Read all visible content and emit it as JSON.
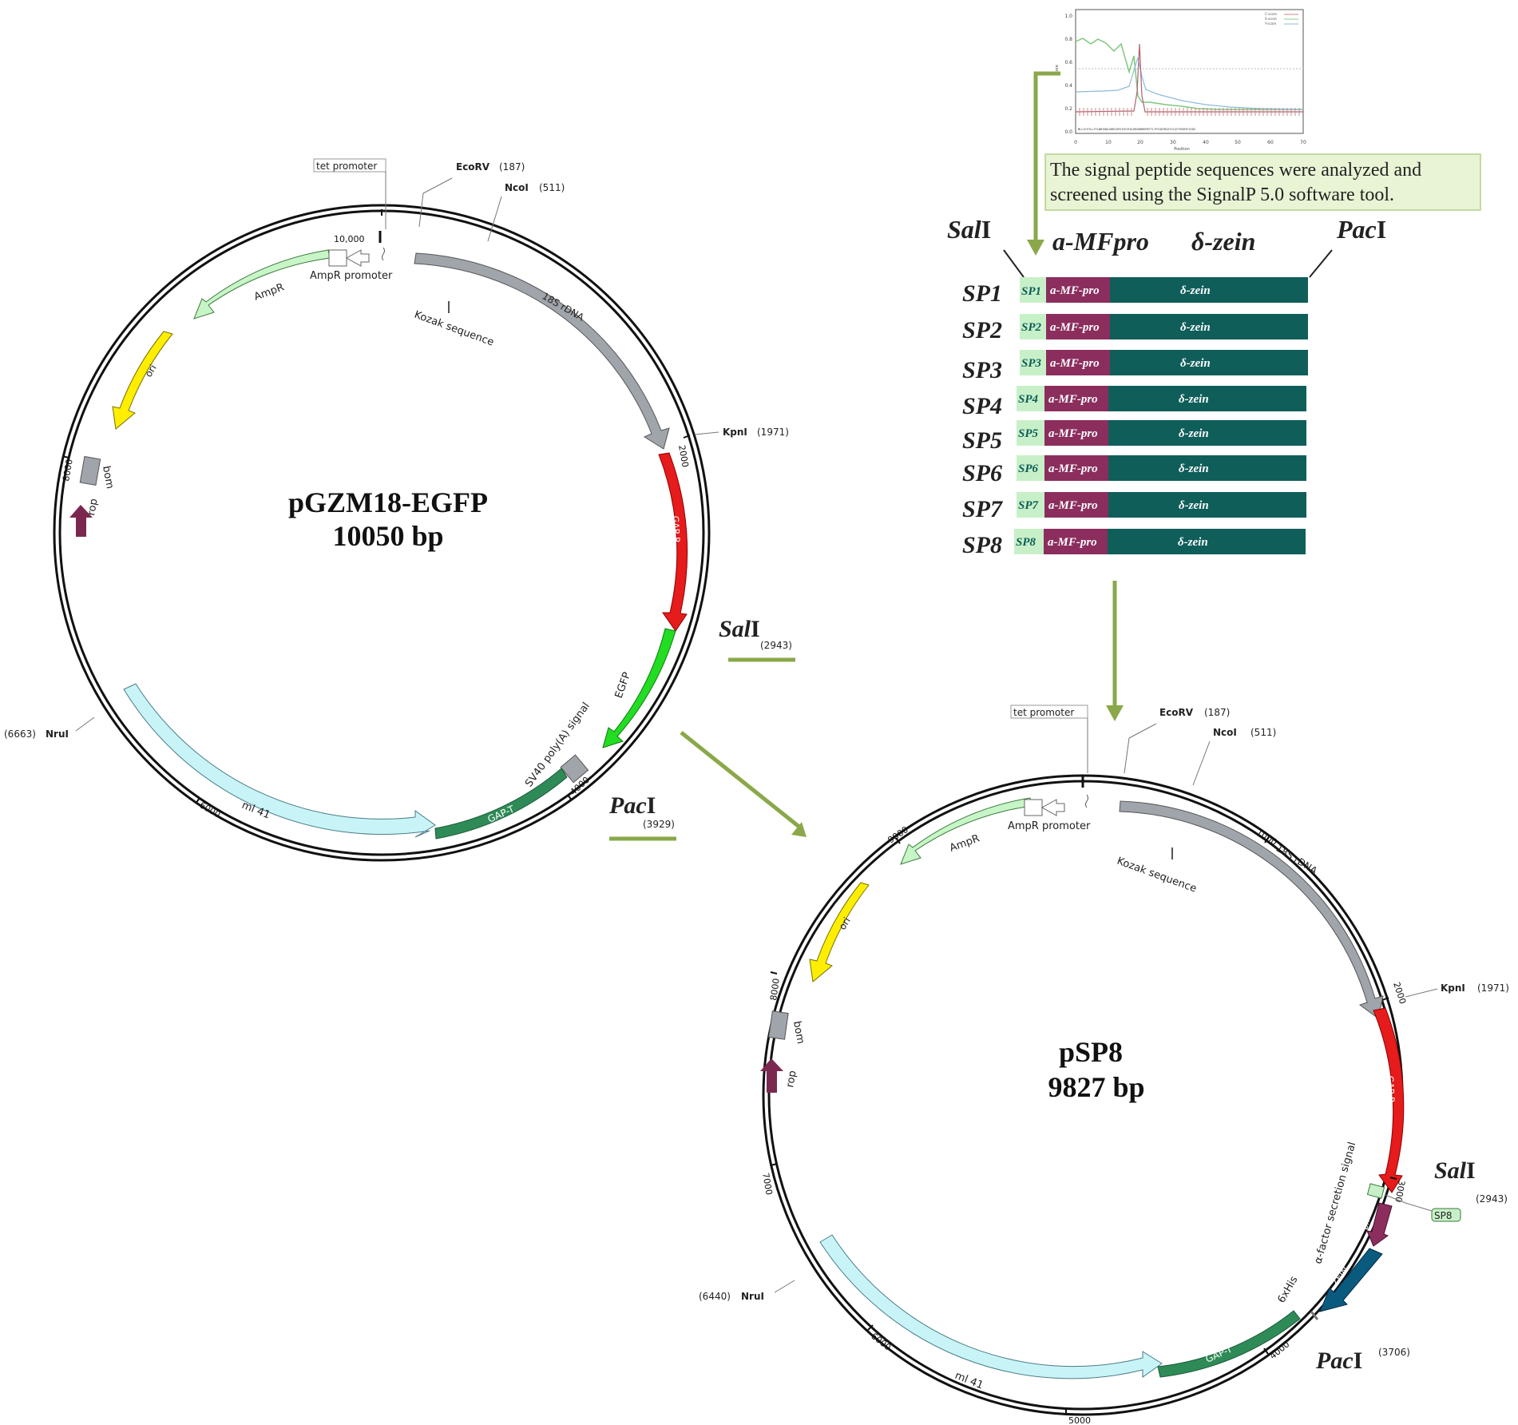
{
  "note_text": [
    "The signal peptide sequences were analyzed and",
    "screened using the SignalP 5.0 software tool."
  ],
  "signalp_chart": {
    "ytick_labels": [
      "1.0",
      "0.8",
      "0.6",
      "0.4",
      "0.2",
      "0.0"
    ],
    "xtick_labels": [
      "0",
      "10",
      "20",
      "30",
      "40",
      "50",
      "60",
      "70"
    ],
    "xlabel": "Position",
    "ylabel": "Score",
    "legend": [
      "C-score",
      "S-score",
      "Y-score"
    ],
    "sequence": "MLLSYSTLLFYLNRYNQLGRRCDFEIVGSFGLRRHORRKPRTTLTPIGOTRQYIYLGFYRSRYFSIDS"
  },
  "construct_header": {
    "sal": "Sal",
    "sal_suffix": "I",
    "amf": "a-MFpro",
    "zein": "δ-zein",
    "pac": "Pac",
    "pac_suffix": "I"
  },
  "constructs": [
    {
      "name": "SP1",
      "sp": "SP1",
      "mf": "a-MF-pro",
      "zein": "δ-zein"
    },
    {
      "name": "SP2",
      "sp": "SP2",
      "mf": "a-MF-pro",
      "zein": "δ-zein"
    },
    {
      "name": "SP3",
      "sp": "SP3",
      "mf": "a-MF-pro",
      "zein": "δ-zein"
    },
    {
      "name": "SP4",
      "sp": "SP4",
      "mf": "a-MF-pro",
      "zein": "δ-zein"
    },
    {
      "name": "SP5",
      "sp": "SP5",
      "mf": "a-MF-pro",
      "zein": "δ-zein"
    },
    {
      "name": "SP6",
      "sp": "SP6",
      "mf": "a-MF-pro",
      "zein": "δ-zein"
    },
    {
      "name": "SP7",
      "sp": "SP7",
      "mf": "a-MF-pro",
      "zein": "δ-zein"
    },
    {
      "name": "SP8",
      "sp": "SP8",
      "mf": "a-MF-pro",
      "zein": "δ-zein"
    }
  ],
  "plasmid1": {
    "name": "pGZM18-EGFP",
    "size": "10050 bp",
    "tet_promoter": "tet promoter",
    "sites": {
      "ecorv": "EcoRV",
      "ecorv_pos": "(187)",
      "ncoi": "NcoI",
      "ncoi_pos": "(511)",
      "kpni": "KpnI",
      "kpni_pos": "(1971)",
      "nrui": "NruI",
      "nrui_pos": "(6663)",
      "sal": "Sal",
      "sal_suffix": "I",
      "sal_pos": "(2943)",
      "pac": "Pac",
      "pac_suffix": "I",
      "pac_pos": "(3929)"
    },
    "ticks": {
      "t10000": "10,000",
      "t2000": "2000",
      "t4000": "4000",
      "t6000": "6000",
      "t8000": "8000"
    },
    "features": {
      "amp_promoter": "AmpR promoter",
      "ampr": "AmpR",
      "rdna": "18S rDNA",
      "kozak": "Kozak sequence",
      "ori": "ori",
      "bom": "bom",
      "rop": "rop",
      "gap_p": "GAP-P",
      "egfp": "EGFP",
      "sv40": "SV40 poly(A) signal",
      "gap_t": "GAP-T",
      "ml41": "ml 41"
    }
  },
  "plasmid2": {
    "name": "pSP8",
    "size": "9827 bp",
    "tet_promoter": "tet promoter",
    "sites": {
      "ecorv": "EcoRV",
      "ecorv_pos": "(187)",
      "ncoi": "NcoI",
      "ncoi_pos": "(511)",
      "kpni": "KpnI",
      "kpni_pos": "(1971)",
      "nrui": "NruI",
      "nrui_pos": "(6440)",
      "sal": "Sal",
      "sal_suffix": "I",
      "sal_pos": "(2943)",
      "pac": "Pac",
      "pac_suffix": "I",
      "pac_pos": "(3706)"
    },
    "ticks": {
      "t1000": "1000",
      "t2000": "2000",
      "t3000": "3000",
      "t4000": "4000",
      "t5000": "5000",
      "t6000": "6000",
      "t7000": "7000",
      "t8000": "8000",
      "t9000": "9000"
    },
    "features": {
      "amp_promoter": "AmpR promoter",
      "ampr": "AmpR",
      "rdna": "18S rDNA",
      "kozak": "Kozak sequence",
      "ori": "ori",
      "bom": "bom",
      "rop": "rop",
      "gap_p": "GAP-P",
      "sp8": "SP8",
      "pro": "pr...",
      "alpha": "α-factor secretion signal",
      "zein": "ZEIN",
      "his": "6xHis",
      "gap_t": "GAP-T",
      "ml41": "ml 41"
    }
  },
  "colors": {
    "arrow_green": "#8aa84a",
    "sp_light": "#c8f0c8",
    "mf_purple": "#8b2e5e",
    "zein_teal": "#0f5e5a",
    "rdna_gray": "#a0a4ab",
    "gap_red": "#e61b1b",
    "egfp_green": "#22dd22",
    "ampr_light": "#c8f5c8",
    "ori_yellow": "#ffee00",
    "rop_purple": "#7a2850",
    "gapt_green": "#2e8b57",
    "ml41_cyan": "#c8f4f8",
    "zein_blue": "#0a5a80",
    "note_bg": "#e8f4d4"
  }
}
